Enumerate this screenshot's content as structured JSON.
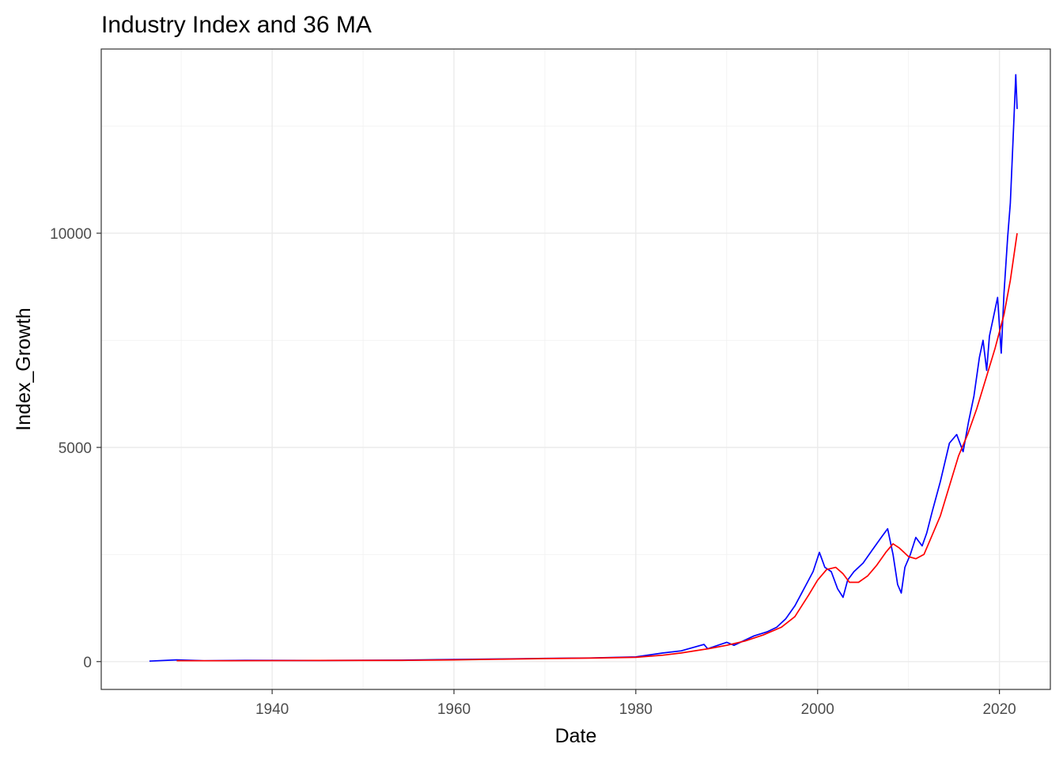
{
  "chart_data": {
    "type": "line",
    "title": "Industry Index and 36 MA",
    "xlabel": "Date",
    "ylabel": "Index_Growth",
    "xlim": [
      1921.2,
      2025.6
    ],
    "ylim": [
      -650,
      14300
    ],
    "x_ticks": [
      1940,
      1960,
      1980,
      2000,
      2020
    ],
    "x_tick_labels": [
      "1940",
      "1960",
      "1980",
      "2000",
      "2020"
    ],
    "y_ticks": [
      0,
      5000,
      10000
    ],
    "y_tick_labels": [
      "0",
      "5000",
      "10000"
    ],
    "grid": true,
    "legend": "none",
    "series": [
      {
        "color": "#0000ff",
        "x": [
          1926.5,
          1929.5,
          1932.5,
          1937.0,
          1945.0,
          1955.0,
          1960.0,
          1965.0,
          1970.0,
          1975.0,
          1980.0,
          1983.0,
          1985.0,
          1987.5,
          1987.9,
          1990.0,
          1990.8,
          1993.0,
          1994.5,
          1995.5,
          1996.5,
          1997.5,
          1998.5,
          1999.5,
          2000.2,
          2000.8,
          2001.5,
          2002.2,
          2002.8,
          2003.3,
          2004.0,
          2005.0,
          2006.0,
          2007.0,
          2007.7,
          2008.3,
          2008.8,
          2009.2,
          2009.6,
          2010.2,
          2010.8,
          2011.5,
          2012.0,
          2012.6,
          2013.5,
          2014.5,
          2015.3,
          2016.0,
          2016.6,
          2017.2,
          2017.8,
          2018.2,
          2018.6,
          2018.9,
          2019.3,
          2019.8,
          2020.2,
          2020.5,
          2020.9,
          2021.2,
          2021.5,
          2021.8,
          2021.95
        ],
        "y": [
          10,
          40,
          20,
          30,
          25,
          35,
          50,
          60,
          75,
          85,
          110,
          200,
          250,
          400,
          300,
          450,
          380,
          600,
          700,
          800,
          1000,
          1300,
          1700,
          2100,
          2550,
          2200,
          2100,
          1700,
          1500,
          1900,
          2100,
          2300,
          2600,
          2900,
          3100,
          2500,
          1800,
          1600,
          2200,
          2500,
          2900,
          2700,
          3000,
          3500,
          4200,
          5100,
          5300,
          4900,
          5600,
          6200,
          7100,
          7500,
          6800,
          7600,
          8000,
          8500,
          7200,
          8600,
          9900,
          10700,
          12200,
          13700,
          12900
        ]
      },
      {
        "color": "#ff0000",
        "x": [
          1929.5,
          1935.0,
          1945.0,
          1955.0,
          1960.0,
          1965.0,
          1970.0,
          1975.0,
          1980.0,
          1983.0,
          1985.0,
          1988.0,
          1990.0,
          1992.0,
          1994.0,
          1996.0,
          1997.5,
          1999.0,
          2000.0,
          2001.0,
          2002.0,
          2002.8,
          2003.5,
          2004.5,
          2005.5,
          2006.5,
          2007.5,
          2008.3,
          2009.0,
          2010.0,
          2010.8,
          2011.7,
          2012.5,
          2013.5,
          2014.5,
          2015.5,
          2016.5,
          2017.5,
          2018.5,
          2019.5,
          2020.5,
          2021.2,
          2021.95
        ],
        "y": [
          20,
          20,
          25,
          30,
          40,
          55,
          70,
          80,
          100,
          150,
          200,
          300,
          380,
          480,
          620,
          800,
          1050,
          1550,
          1900,
          2150,
          2200,
          2050,
          1850,
          1850,
          2000,
          2250,
          2550,
          2750,
          2650,
          2450,
          2400,
          2500,
          2900,
          3400,
          4100,
          4800,
          5300,
          5900,
          6600,
          7300,
          8100,
          8900,
          10000
        ]
      }
    ]
  }
}
